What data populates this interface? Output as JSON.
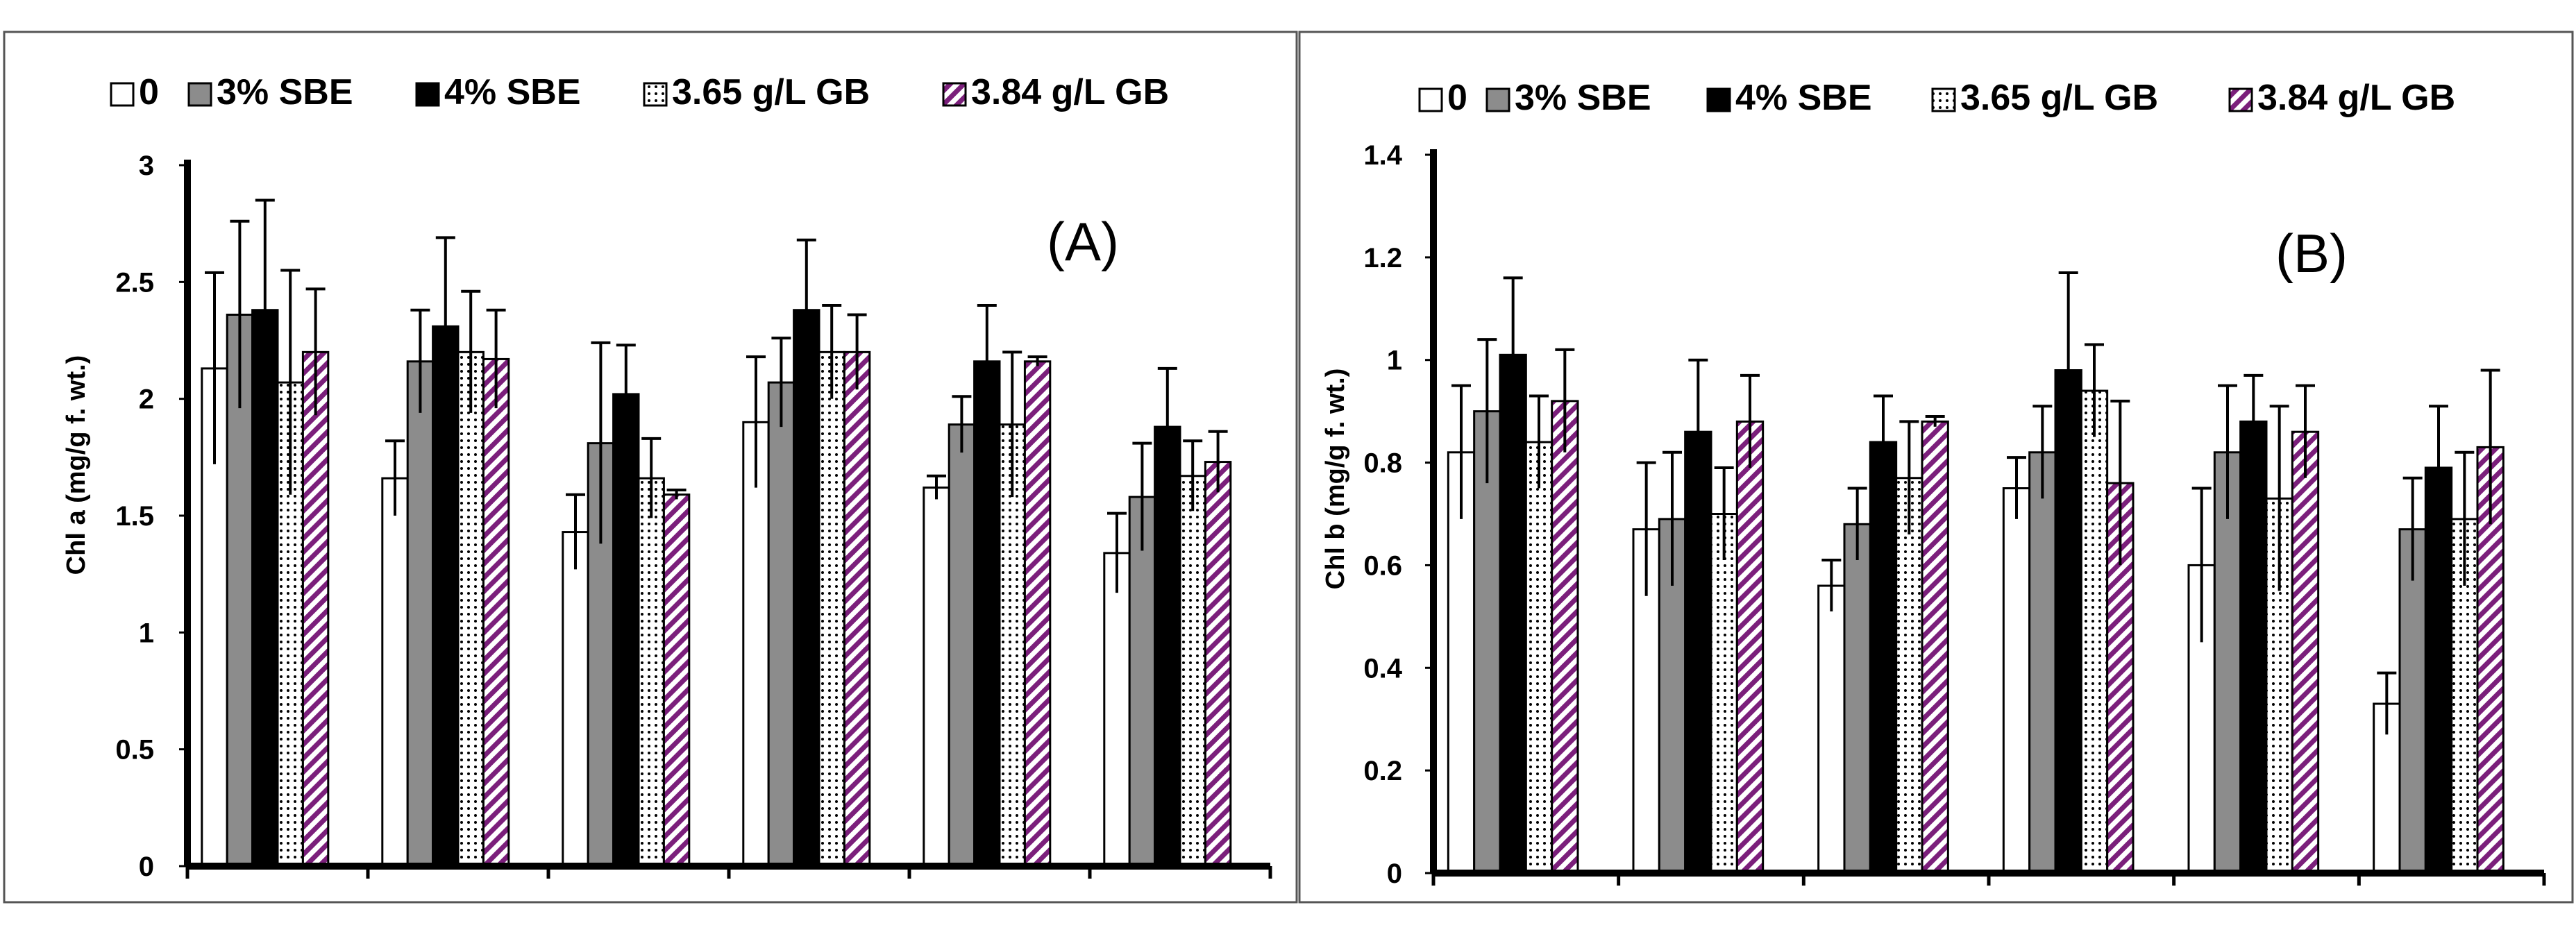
{
  "chart_data": [
    {
      "type": "bar",
      "panel_label": "(A)",
      "ylabel": "Chl a (mg/g f. wt.)",
      "ylim": [
        0,
        3
      ],
      "yticks": [
        0,
        0.5,
        1,
        1.5,
        2,
        2.5,
        3
      ],
      "ytick_labels": [
        "0",
        "0.5",
        "1",
        "1.5",
        "2",
        "2.5",
        "3"
      ],
      "categories": [
        "",
        "",
        "",
        "",
        "",
        ""
      ],
      "legend_position": "top",
      "series": [
        {
          "name": "0",
          "values": [
            2.13,
            1.66,
            1.43,
            1.9,
            1.62,
            1.34
          ],
          "errors": [
            0.41,
            0.16,
            0.16,
            0.28,
            0.05,
            0.17
          ]
        },
        {
          "name": "3% SBE",
          "values": [
            2.36,
            2.16,
            1.81,
            2.07,
            1.89,
            1.58
          ],
          "errors": [
            0.4,
            0.22,
            0.43,
            0.19,
            0.12,
            0.23
          ]
        },
        {
          "name": "4% SBE",
          "values": [
            2.38,
            2.31,
            2.02,
            2.38,
            2.16,
            1.88
          ],
          "errors": [
            0.47,
            0.38,
            0.21,
            0.3,
            0.24,
            0.25
          ]
        },
        {
          "name": "3.65 g/L GB",
          "values": [
            2.07,
            2.2,
            1.66,
            2.2,
            1.89,
            1.67
          ],
          "errors": [
            0.48,
            0.26,
            0.17,
            0.2,
            0.31,
            0.15
          ]
        },
        {
          "name": "3.84 g/L GB",
          "values": [
            2.2,
            2.17,
            1.59,
            2.2,
            2.16,
            1.73
          ],
          "errors": [
            0.27,
            0.21,
            0.02,
            0.16,
            0.02,
            0.13
          ]
        }
      ]
    },
    {
      "type": "bar",
      "panel_label": "(B)",
      "ylabel": "Chl b (mg/g f. wt.)",
      "ylim": [
        0,
        1.4
      ],
      "yticks": [
        0,
        0.2,
        0.4,
        0.6,
        0.8,
        1,
        1.2,
        1.4
      ],
      "ytick_labels": [
        "0",
        "0.2",
        "0.4",
        "0.6",
        "0.8",
        "1",
        "1.2",
        "1.4"
      ],
      "categories": [
        "",
        "",
        "",
        "",
        "",
        ""
      ],
      "legend_position": "top",
      "series": [
        {
          "name": "0",
          "values": [
            0.82,
            0.67,
            0.56,
            0.75,
            0.6,
            0.33
          ],
          "errors": [
            0.13,
            0.13,
            0.05,
            0.06,
            0.15,
            0.06
          ]
        },
        {
          "name": "3% SBE",
          "values": [
            0.9,
            0.69,
            0.68,
            0.82,
            0.82,
            0.67
          ],
          "errors": [
            0.14,
            0.13,
            0.07,
            0.09,
            0.13,
            0.1
          ]
        },
        {
          "name": "4% SBE",
          "values": [
            1.01,
            0.86,
            0.84,
            0.98,
            0.88,
            0.79
          ],
          "errors": [
            0.15,
            0.14,
            0.09,
            0.19,
            0.09,
            0.12
          ]
        },
        {
          "name": "3.65 g/L GB",
          "values": [
            0.84,
            0.7,
            0.77,
            0.94,
            0.73,
            0.69
          ],
          "errors": [
            0.09,
            0.09,
            0.11,
            0.09,
            0.18,
            0.13
          ]
        },
        {
          "name": "3.84 g/L GB",
          "values": [
            0.92,
            0.88,
            0.88,
            0.76,
            0.86,
            0.83
          ],
          "errors": [
            0.1,
            0.09,
            0.01,
            0.16,
            0.09,
            0.15
          ]
        }
      ]
    }
  ],
  "colors": {
    "series_0": "#ffffff",
    "series_1": "#8c8c8c",
    "series_2": "#000000",
    "series_3_pattern": "dotted-white",
    "series_4_pattern": "diagonal-purple",
    "purple": "#7b1f7b",
    "axis": "#000000",
    "frame": "#555555"
  }
}
